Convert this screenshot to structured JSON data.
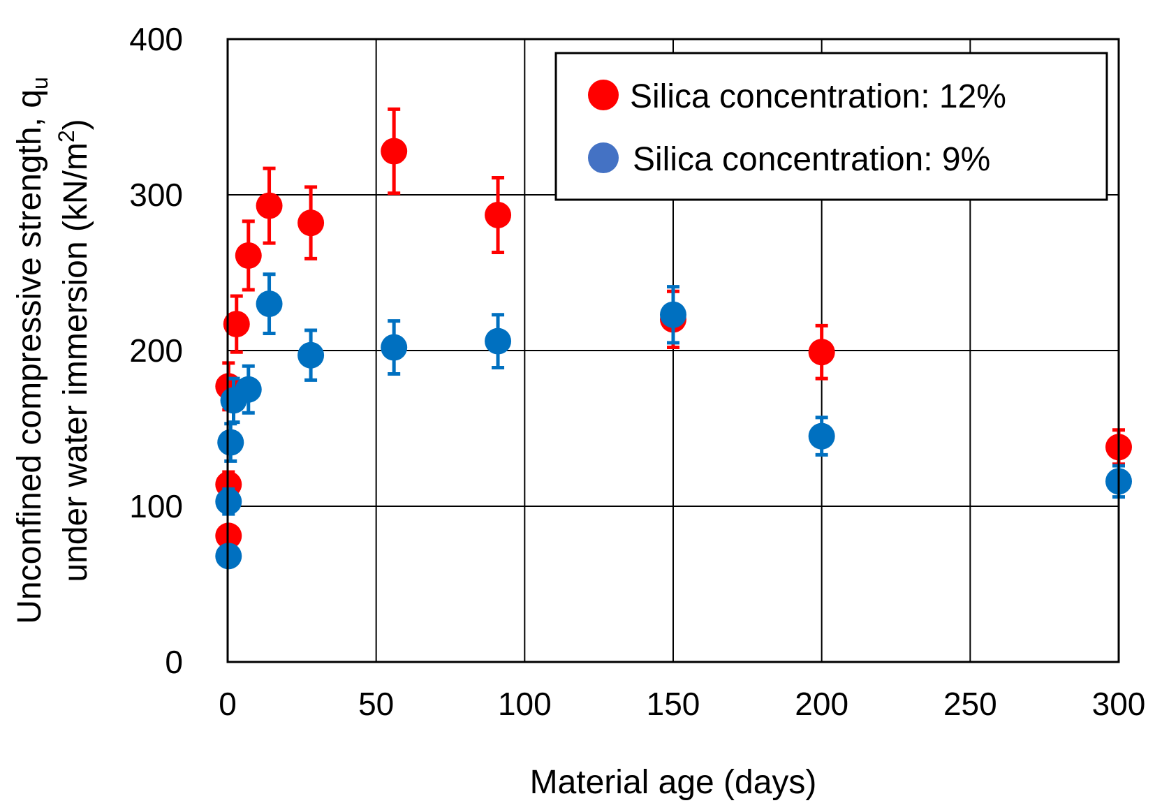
{
  "chart_data": {
    "type": "scatter",
    "title": "",
    "xlabel": "Material age (days)",
    "ylabel_line1": "Unconfined compressive strength, q",
    "ylabel_line1_sub": "u",
    "ylabel_line2": "under water immersion (kN/m",
    "ylabel_line2_sup": "2",
    "ylabel_line2_end": ")",
    "xlim": [
      0,
      300
    ],
    "ylim": [
      0,
      400
    ],
    "xticks": [
      0,
      50,
      100,
      150,
      200,
      250,
      300
    ],
    "yticks": [
      0,
      100,
      200,
      300,
      400
    ],
    "grid": true,
    "legend_position": "top-right",
    "series": [
      {
        "name": "Silica concentration: 12%",
        "color": "#ff0000",
        "legend_color": "#ff0000",
        "points": [
          {
            "x": 0.3,
            "y": 81,
            "err": 6
          },
          {
            "x": 0.3,
            "y": 114,
            "err": 8
          },
          {
            "x": 0.3,
            "y": 177,
            "err": 15
          },
          {
            "x": 3,
            "y": 217,
            "err": 18
          },
          {
            "x": 7,
            "y": 261,
            "err": 22
          },
          {
            "x": 14,
            "y": 293,
            "err": 24
          },
          {
            "x": 28,
            "y": 282,
            "err": 23
          },
          {
            "x": 56,
            "y": 328,
            "err": 27
          },
          {
            "x": 91,
            "y": 287,
            "err": 24
          },
          {
            "x": 150,
            "y": 220,
            "err": 18
          },
          {
            "x": 200,
            "y": 199,
            "err": 17
          },
          {
            "x": 300,
            "y": 138,
            "err": 11
          }
        ]
      },
      {
        "name": "Silica concentration: 9%",
        "color": "#0070c0",
        "legend_color": "#4472c4",
        "points": [
          {
            "x": 0.3,
            "y": 68,
            "err": 5
          },
          {
            "x": 0.3,
            "y": 103,
            "err": 8
          },
          {
            "x": 1,
            "y": 141,
            "err": 12
          },
          {
            "x": 2,
            "y": 168,
            "err": 14
          },
          {
            "x": 7,
            "y": 175,
            "err": 15
          },
          {
            "x": 14,
            "y": 230,
            "err": 19
          },
          {
            "x": 28,
            "y": 197,
            "err": 16
          },
          {
            "x": 56,
            "y": 202,
            "err": 17
          },
          {
            "x": 91,
            "y": 206,
            "err": 17
          },
          {
            "x": 150,
            "y": 223,
            "err": 18
          },
          {
            "x": 200,
            "y": 145,
            "err": 12
          },
          {
            "x": 300,
            "y": 116,
            "err": 10
          }
        ]
      }
    ]
  }
}
